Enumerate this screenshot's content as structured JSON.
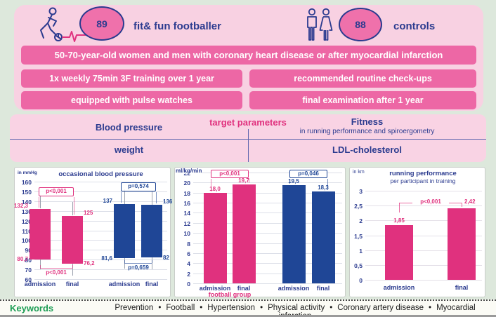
{
  "colors": {
    "background": "#dde8dc",
    "panel_pink": "#f8d1e2",
    "banner_pink": "#ed67a5",
    "ellipse_pink": "#ef71ab",
    "navy": "#2b3b8f",
    "hot_pink": "#e0317e",
    "chart_blue": "#1f4696",
    "keyword_green": "#1d9d55"
  },
  "header": {
    "football_group": {
      "count": "89",
      "label": "fit& fun footballer"
    },
    "control_group": {
      "count": "88",
      "label": "controls"
    }
  },
  "banners": {
    "population": "50-70-year-old women and men with coronary heart disease or after myocardial infarction",
    "training": "1x weekly 75min 3F training over 1 year",
    "checkups": "recommended routine check-ups",
    "watches": "equipped with pulse watches",
    "final_exam": "final examination after 1 year"
  },
  "target_parameters": {
    "title": "target parameters",
    "blood_pressure": "Blood pressure",
    "fitness": "Fitness",
    "fitness_sub": "in running performance and spiroergometry",
    "weight": "weight",
    "ldl": "LDL-cholesterol"
  },
  "chart_data": [
    {
      "type": "floating-bar",
      "title": "occasional blood pressure",
      "unit": "in mmHg",
      "ylim": [
        60,
        160
      ],
      "yticks": [
        "160",
        "150",
        "140",
        "130",
        "120",
        "110",
        "100",
        "90",
        "80",
        "70",
        "60"
      ],
      "grid": true,
      "groups": [
        {
          "name": "football group",
          "color": "#e0317e",
          "p_top": "p<0,001",
          "p_bottom": "p<0,001",
          "bars": [
            {
              "x": "admission",
              "high": 132.3,
              "low": 80.7,
              "high_label": "132,3",
              "low_label": "80,7",
              "whisker_high": 146,
              "whisker_low": 70
            },
            {
              "x": "final",
              "high": 125,
              "low": 76.2,
              "high_label": "125",
              "low_label": "76,2",
              "whisker_high": 139,
              "whisker_low": 63
            }
          ]
        },
        {
          "name": "controls",
          "color": "#1f4696",
          "p_top": "p=0,574",
          "p_bottom": "p=0,659",
          "bars": [
            {
              "x": "admission",
              "high": 137,
              "low": 81.6,
              "high_label": "137",
              "low_label": "81,6",
              "whisker_high": 152,
              "whisker_low": 71
            },
            {
              "x": "final",
              "high": 136,
              "low": 82,
              "high_label": "136",
              "low_label": "82",
              "whisker_high": 151,
              "whisker_low": 70
            }
          ]
        }
      ]
    },
    {
      "type": "bar",
      "title": "",
      "unit": "ml/kg/min",
      "ylim": [
        0,
        22
      ],
      "yticks": [
        "22",
        "20",
        "18",
        "16",
        "14",
        "12",
        "10",
        "8",
        "6",
        "4",
        "2",
        "0"
      ],
      "grid": true,
      "groups": [
        {
          "name": "football group",
          "group_label": "football group",
          "color": "#e0317e",
          "p": "p<0,001",
          "bars": [
            {
              "x": "admission",
              "value": 18.0,
              "label": "18,0"
            },
            {
              "x": "final",
              "value": 19.7,
              "label": "19,7"
            }
          ]
        },
        {
          "name": "controls",
          "group_label": "",
          "color": "#1f4696",
          "p": "p=0,046",
          "bars": [
            {
              "x": "admission",
              "value": 19.5,
              "label": "19,5"
            },
            {
              "x": "final",
              "value": 18.3,
              "label": "18,3"
            }
          ]
        }
      ]
    },
    {
      "type": "bar",
      "title": "running performance",
      "subtitle": "per participant in training",
      "unit": "in km",
      "ylim": [
        0,
        3
      ],
      "yticks": [
        "3",
        "2,5",
        "2",
        "1,5",
        "1",
        "0,5",
        "0"
      ],
      "grid": true,
      "groups": [
        {
          "name": "football group",
          "color": "#e0317e",
          "p": "p<0,001",
          "bars": [
            {
              "x": "admission",
              "value": 1.85,
              "label": "1,85"
            },
            {
              "x": "final",
              "value": 2.42,
              "label": "2,42"
            }
          ]
        }
      ]
    }
  ],
  "keywords": {
    "label": "Keywords",
    "items": [
      "Prevention",
      "Football",
      "Hypertension",
      "Physical activity",
      "Coronary artery disease",
      "Myocardial infarction"
    ]
  }
}
